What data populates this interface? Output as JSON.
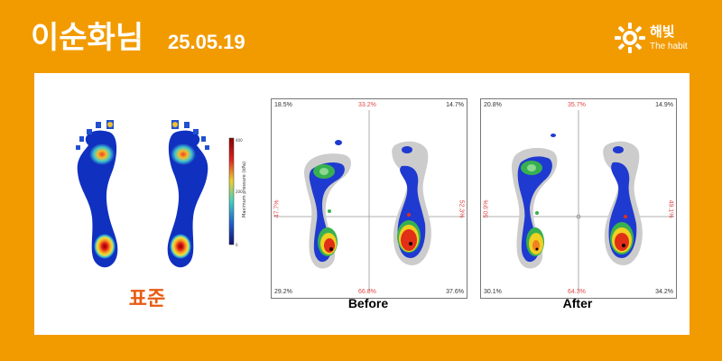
{
  "header": {
    "name": "이순화님",
    "date": "25.05.19",
    "brand": "해빛",
    "brand_sub": "The habit"
  },
  "standard": {
    "label": "표준",
    "colorbar_label": "Maximum pressure (kPa)",
    "colorbar_top": "400",
    "colorbar_mid": "200",
    "colorbar_bottom": "0"
  },
  "before": {
    "caption": "Before",
    "top_left": "18.5%",
    "top_center": "33.2%",
    "top_right": "14.7%",
    "mid_left": "47.7%",
    "mid_right": "52.3%",
    "bottom_left": "29.2%",
    "bottom_center": "66.8%",
    "bottom_right": "37.6%"
  },
  "after": {
    "caption": "After",
    "top_left": "20.8%",
    "top_center": "35.7%",
    "top_right": "14.9%",
    "mid_left": "50.9%",
    "mid_right": "49.1%",
    "bottom_left": "30.1%",
    "bottom_center": "64.3%",
    "bottom_right": "34.2%"
  }
}
